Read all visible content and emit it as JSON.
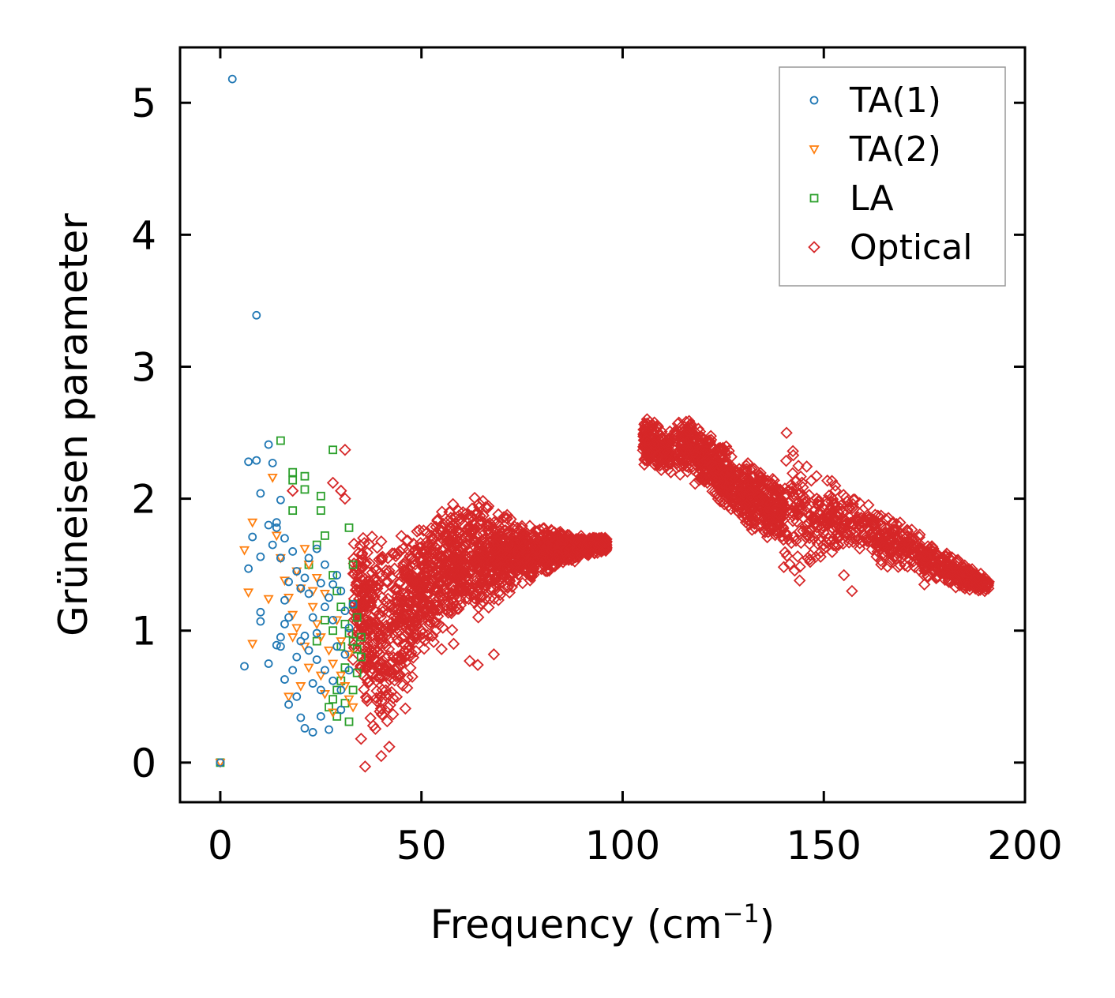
{
  "chart_data": {
    "type": "scatter",
    "title": "",
    "xlabel": "Frequency (cm",
    "xlabel_sup": "−1",
    "xlabel_close": ")",
    "ylabel": "Grüneisen parameter",
    "xlim": [
      -10,
      200
    ],
    "ylim": [
      -0.3,
      5.42
    ],
    "xticks": [
      0,
      50,
      100,
      150,
      200
    ],
    "yticks": [
      0,
      1,
      2,
      3,
      4,
      5
    ],
    "xtick_labels": [
      "0",
      "50",
      "100",
      "150",
      "200"
    ],
    "ytick_labels": [
      "0",
      "1",
      "2",
      "3",
      "4",
      "5"
    ],
    "legend_position": "top-right",
    "series": [
      {
        "name": "TA(1)",
        "marker": "circle",
        "color": "#1f77b4",
        "points": [
          [
            0,
            0
          ],
          [
            3,
            5.18
          ],
          [
            9,
            3.39
          ],
          [
            6,
            0.73
          ],
          [
            7,
            2.28
          ],
          [
            9,
            2.29
          ],
          [
            10,
            2.04
          ],
          [
            12,
            2.41
          ],
          [
            13,
            2.27
          ],
          [
            14,
            1.82
          ],
          [
            15,
            1.99
          ],
          [
            16,
            1.7
          ],
          [
            8,
            1.71
          ],
          [
            7,
            1.47
          ],
          [
            10,
            1.56
          ],
          [
            12,
            1.8
          ],
          [
            14,
            1.78
          ],
          [
            10,
            1.14
          ],
          [
            10,
            1.07
          ],
          [
            12,
            0.75
          ],
          [
            14,
            0.89
          ],
          [
            15,
            0.88
          ],
          [
            16,
            0.63
          ],
          [
            17,
            0.44
          ],
          [
            19,
            0.5
          ],
          [
            20,
            0.34
          ],
          [
            21,
            0.26
          ],
          [
            23,
            0.23
          ],
          [
            25,
            0.35
          ],
          [
            27,
            0.25
          ],
          [
            13,
            1.65
          ],
          [
            15,
            1.55
          ],
          [
            16,
            1.23
          ],
          [
            17,
            1.37
          ],
          [
            18,
            1.6
          ],
          [
            19,
            1.45
          ],
          [
            20,
            1.32
          ],
          [
            21,
            1.4
          ],
          [
            22,
            1.28
          ],
          [
            23,
            1.1
          ],
          [
            24,
            0.98
          ],
          [
            25,
            1.36
          ],
          [
            26,
            1.18
          ],
          [
            27,
            1.25
          ],
          [
            28,
            1.08
          ],
          [
            29,
            1.42
          ],
          [
            30,
            1.3
          ],
          [
            31,
            1.15
          ],
          [
            32,
            1.02
          ],
          [
            33,
            1.2
          ],
          [
            20,
            0.92
          ],
          [
            22,
            0.85
          ],
          [
            24,
            0.78
          ],
          [
            26,
            0.7
          ],
          [
            28,
            0.62
          ],
          [
            30,
            0.55
          ],
          [
            23,
            0.6
          ],
          [
            25,
            0.55
          ],
          [
            19,
            0.8
          ],
          [
            18,
            0.7
          ],
          [
            21,
            0.96
          ],
          [
            17,
            1.1
          ],
          [
            16,
            1.05
          ],
          [
            15,
            0.95
          ],
          [
            22,
            1.55
          ],
          [
            24,
            1.62
          ],
          [
            26,
            1.5
          ],
          [
            28,
            1.35
          ],
          [
            29,
            0.88
          ],
          [
            31,
            0.82
          ],
          [
            32,
            0.7
          ],
          [
            30,
            0.4
          ]
        ]
      },
      {
        "name": "TA(2)",
        "marker": "triangle-down",
        "color": "#ff7f0e",
        "points": [
          [
            0,
            0
          ],
          [
            8,
            1.82
          ],
          [
            6,
            1.61
          ],
          [
            7,
            1.29
          ],
          [
            8,
            0.9
          ],
          [
            12,
            1.24
          ],
          [
            13,
            2.16
          ],
          [
            14,
            1.72
          ],
          [
            15,
            1.55
          ],
          [
            16,
            1.38
          ],
          [
            17,
            1.25
          ],
          [
            18,
            1.12
          ],
          [
            19,
            1.45
          ],
          [
            20,
            1.32
          ],
          [
            21,
            1.62
          ],
          [
            22,
            1.5
          ],
          [
            23,
            1.18
          ],
          [
            24,
            1.05
          ],
          [
            25,
            0.95
          ],
          [
            26,
            1.28
          ],
          [
            27,
            0.85
          ],
          [
            28,
            0.75
          ],
          [
            29,
            1.08
          ],
          [
            30,
            0.66
          ],
          [
            31,
            0.58
          ],
          [
            32,
            0.48
          ],
          [
            33,
            0.42
          ],
          [
            17,
            0.5
          ],
          [
            20,
            0.58
          ],
          [
            22,
            0.72
          ],
          [
            18,
            0.95
          ],
          [
            24,
            1.4
          ],
          [
            26,
            0.52
          ],
          [
            28,
            0.38
          ],
          [
            30,
            0.92
          ],
          [
            32,
            0.82
          ],
          [
            25,
            0.66
          ],
          [
            19,
            1.02
          ],
          [
            21,
            0.88
          ],
          [
            23,
            1.3
          ]
        ]
      },
      {
        "name": "LA",
        "marker": "square",
        "color": "#2ca02c",
        "points": [
          [
            0,
            0
          ],
          [
            15,
            2.44
          ],
          [
            18,
            2.2
          ],
          [
            18,
            2.14
          ],
          [
            21,
            2.17
          ],
          [
            21,
            2.07
          ],
          [
            25,
            2.02
          ],
          [
            28,
            2.37
          ],
          [
            25,
            1.91
          ],
          [
            18,
            1.91
          ],
          [
            32,
            1.78
          ],
          [
            33,
            1.5
          ],
          [
            22,
            1.5
          ],
          [
            24,
            1.65
          ],
          [
            26,
            1.72
          ],
          [
            28,
            1.42
          ],
          [
            29,
            1.3
          ],
          [
            30,
            1.18
          ],
          [
            31,
            1.05
          ],
          [
            32,
            0.98
          ],
          [
            33,
            0.92
          ],
          [
            34,
            0.86
          ],
          [
            35,
            0.8
          ],
          [
            34,
            1.1
          ],
          [
            33,
            1.2
          ],
          [
            31,
            0.72
          ],
          [
            30,
            0.62
          ],
          [
            29,
            0.55
          ],
          [
            28,
            0.48
          ],
          [
            27,
            0.42
          ],
          [
            32,
            0.31
          ],
          [
            29,
            0.35
          ],
          [
            35,
            0.95
          ],
          [
            34,
            0.68
          ],
          [
            33,
            0.55
          ],
          [
            31,
            0.45
          ],
          [
            30,
            0.88
          ],
          [
            28,
            1.0
          ],
          [
            26,
            1.08
          ],
          [
            24,
            0.92
          ]
        ]
      },
      {
        "name": "Optical",
        "marker": "diamond",
        "color": "#d62728",
        "clusters": [
          {
            "count": 1800,
            "seed": 11,
            "x0": 33,
            "x1": 96,
            "poly_upper": [
              [
                33,
                1.75
              ],
              [
                40,
                1.68
              ],
              [
                45,
                1.72
              ],
              [
                50,
                1.85
              ],
              [
                58,
                2.0
              ],
              [
                65,
                1.98
              ],
              [
                75,
                1.8
              ],
              [
                85,
                1.75
              ],
              [
                95,
                1.7
              ]
            ],
            "poly_lower": [
              [
                33,
                0.75
              ],
              [
                38,
                0.3
              ],
              [
                42,
                0.15
              ],
              [
                45,
                0.5
              ],
              [
                50,
                0.8
              ],
              [
                58,
                1.05
              ],
              [
                65,
                1.15
              ],
              [
                75,
                1.35
              ],
              [
                85,
                1.5
              ],
              [
                95,
                1.6
              ]
            ]
          },
          {
            "count": 200,
            "seed": 23,
            "x0": 105,
            "x1": 112,
            "poly_upper": [
              [
                105,
                2.65
              ],
              [
                112,
                2.5
              ]
            ],
            "poly_lower": [
              [
                105,
                2.25
              ],
              [
                112,
                2.2
              ]
            ]
          },
          {
            "count": 700,
            "seed": 37,
            "x0": 113,
            "x1": 140,
            "poly_upper": [
              [
                113,
                2.65
              ],
              [
                120,
                2.55
              ],
              [
                130,
                2.3
              ],
              [
                140,
                2.1
              ]
            ],
            "poly_lower": [
              [
                113,
                2.2
              ],
              [
                120,
                2.1
              ],
              [
                130,
                1.8
              ],
              [
                140,
                1.65
              ]
            ]
          },
          {
            "count": 650,
            "seed": 41,
            "x0": 140,
            "x1": 191,
            "poly_upper": [
              [
                140,
                2.55
              ],
              [
                145,
                2.3
              ],
              [
                155,
                2.05
              ],
              [
                165,
                1.9
              ],
              [
                180,
                1.6
              ],
              [
                191,
                1.4
              ]
            ],
            "poly_lower": [
              [
                140,
                1.45
              ],
              [
                145,
                1.4
              ],
              [
                155,
                1.65
              ],
              [
                165,
                1.5
              ],
              [
                180,
                1.35
              ],
              [
                191,
                1.28
              ]
            ]
          }
        ],
        "points": [
          [
            40,
            0.05
          ],
          [
            42,
            0.12
          ],
          [
            36,
            -0.03
          ],
          [
            31,
            2.37
          ],
          [
            30,
            2.06
          ],
          [
            31,
            2.0
          ],
          [
            18,
            2.06
          ],
          [
            28,
            2.12
          ],
          [
            46,
            0.41
          ],
          [
            38,
            0.28
          ],
          [
            35,
            0.18
          ],
          [
            64,
            0.74
          ],
          [
            62,
            0.77
          ],
          [
            68,
            0.82
          ],
          [
            55,
            0.86
          ],
          [
            58,
            0.9
          ],
          [
            144,
            1.38
          ],
          [
            146,
            1.55
          ],
          [
            148,
            1.56
          ],
          [
            155,
            1.42
          ],
          [
            157,
            1.3
          ],
          [
            175,
            1.35
          ],
          [
            191,
            1.37
          ],
          [
            190,
            1.3
          ]
        ]
      }
    ]
  }
}
